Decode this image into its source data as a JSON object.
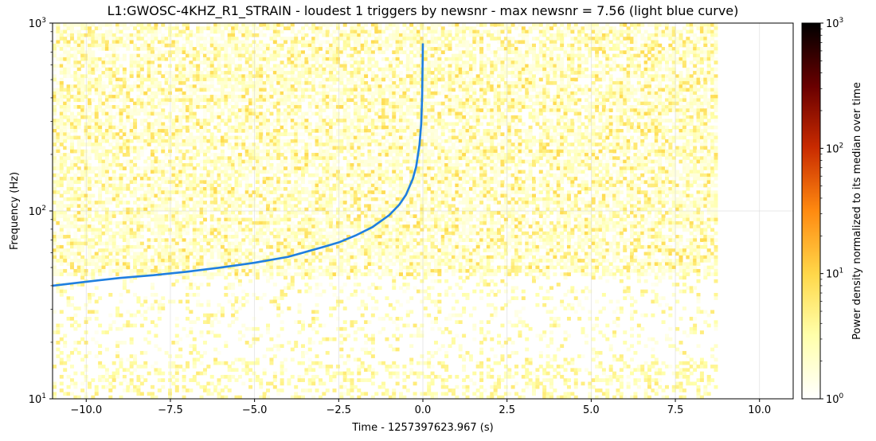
{
  "chart_data": {
    "type": "heatmap",
    "title": "L1:GWOSC-4KHZ_R1_STRAIN - loudest 1 triggers by newsnr - max newsnr = 7.56 (light blue curve)",
    "xlabel": "Time - 1257397623.967 (s)",
    "ylabel": "Frequency (Hz)",
    "colorbar_label": "Power density normalized to its median over time",
    "xlim": [
      -11,
      11
    ],
    "ylim": [
      10,
      1000
    ],
    "yscale": "log",
    "x_ticks": [
      -10.0,
      -7.5,
      -5.0,
      -2.5,
      0.0,
      2.5,
      5.0,
      7.5,
      10.0
    ],
    "x_tick_labels": [
      "−10.0",
      "−7.5",
      "−5.0",
      "−2.5",
      "0.0",
      "2.5",
      "5.0",
      "7.5",
      "10.0"
    ],
    "y_ticks": [
      10,
      100,
      1000
    ],
    "y_tick_labels": [
      {
        "base": "10",
        "exp": "1"
      },
      {
        "base": "10",
        "exp": "2"
      },
      {
        "base": "10",
        "exp": "3"
      }
    ],
    "colorbar_ticks": [
      1,
      10,
      100,
      1000
    ],
    "colorbar_tick_labels": [
      {
        "base": "10",
        "exp": "0"
      },
      {
        "base": "10",
        "exp": "1"
      },
      {
        "base": "10",
        "exp": "2"
      },
      {
        "base": "10",
        "exp": "3"
      }
    ],
    "colorbar_range": [
      1,
      1000
    ],
    "colormap": "afmhot_r",
    "grid": true,
    "heatmap_x_extent": [
      -11,
      8.75
    ],
    "track": {
      "name": "loudest trigger (newsnr = 7.56)",
      "color": "#1f7fe0",
      "x": [
        -11,
        -10,
        -9,
        -8,
        -7,
        -6,
        -5,
        -4,
        -3,
        -2.5,
        -2,
        -1.5,
        -1,
        -0.7,
        -0.5,
        -0.3,
        -0.2,
        -0.1,
        -0.05,
        -0.02,
        0.0
      ],
      "y": [
        40,
        42,
        44,
        45.5,
        47.5,
        50,
        53,
        57,
        64,
        68,
        74,
        82,
        95,
        108,
        122,
        148,
        172,
        225,
        290,
        420,
        780
      ]
    }
  }
}
